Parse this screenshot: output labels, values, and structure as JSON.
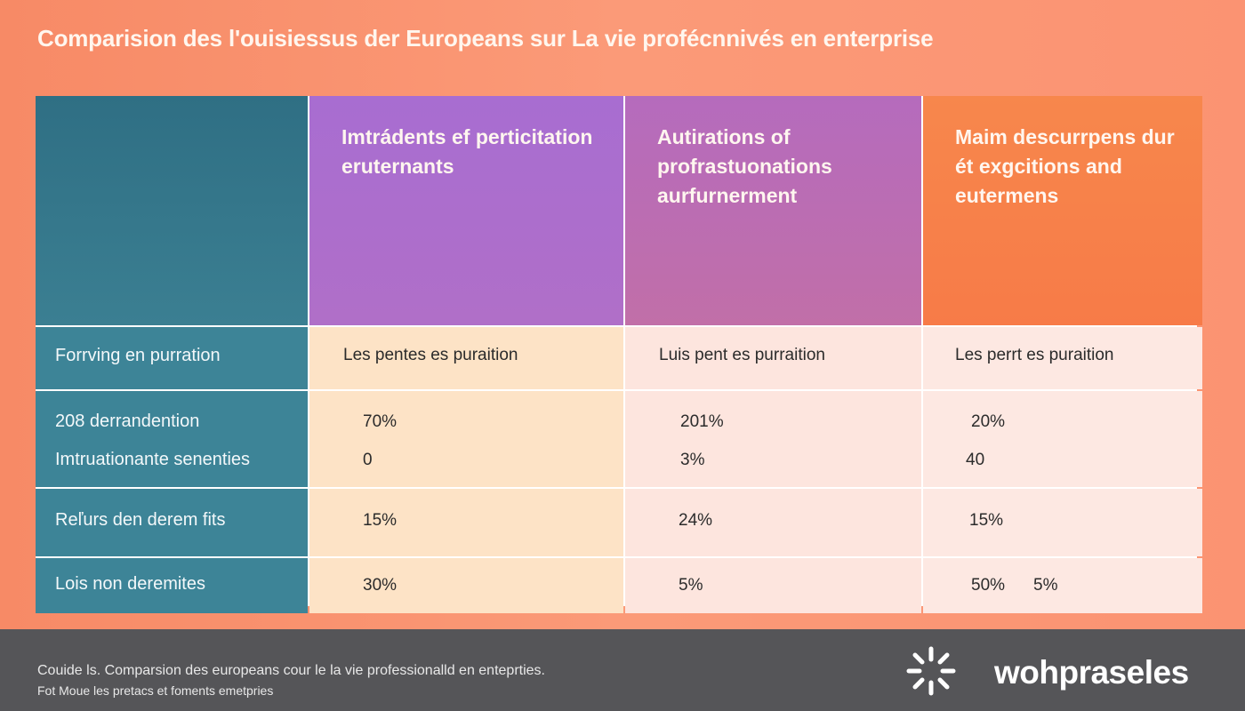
{
  "title": "Comparision des l'ouisiessus der Europeans sur La vie profécnnivés en enterprise",
  "columns": [
    {
      "label": "Imtrádents ef perticitation eruternants"
    },
    {
      "label": "Autirations of profrastuonations aurfurnerment"
    },
    {
      "label": "Maim descurrpens dur ét exgcitions and eutermens"
    }
  ],
  "rows": {
    "r1": {
      "label": "Forrving en purration",
      "values": [
        "Les pentes es puraition",
        "Luis pent es purraition",
        "Les perrt es puraition"
      ]
    },
    "r2": {
      "label_a": "208 derrandention",
      "label_b": "Imtruationante senenties",
      "values_a": [
        "70%",
        "201%",
        "20%"
      ],
      "values_b": [
        "0",
        "3%",
        "40"
      ]
    },
    "r3": {
      "label": "Reľurs den derem fits",
      "values": [
        "15%",
        "24%",
        "15%"
      ]
    },
    "r4": {
      "label": "Lois non deremites",
      "values": [
        "30%",
        "5%",
        "50%"
      ],
      "extra": "5%"
    }
  },
  "footer": {
    "line1": "Couide ls. Comparsion des europeans cour le la vie professionalld  en enteprties.",
    "line2": "Fot Moue les pretacs et foments emetpries",
    "brand": "wohpraseles",
    "logo_icon": "sparkle-icon"
  },
  "colors": {
    "header_teal": "#2f6f84",
    "header_purple": "#a86dd1",
    "header_mauve": "#b56bbd",
    "header_orange": "#f7874c",
    "footer_bg": "#555558"
  }
}
